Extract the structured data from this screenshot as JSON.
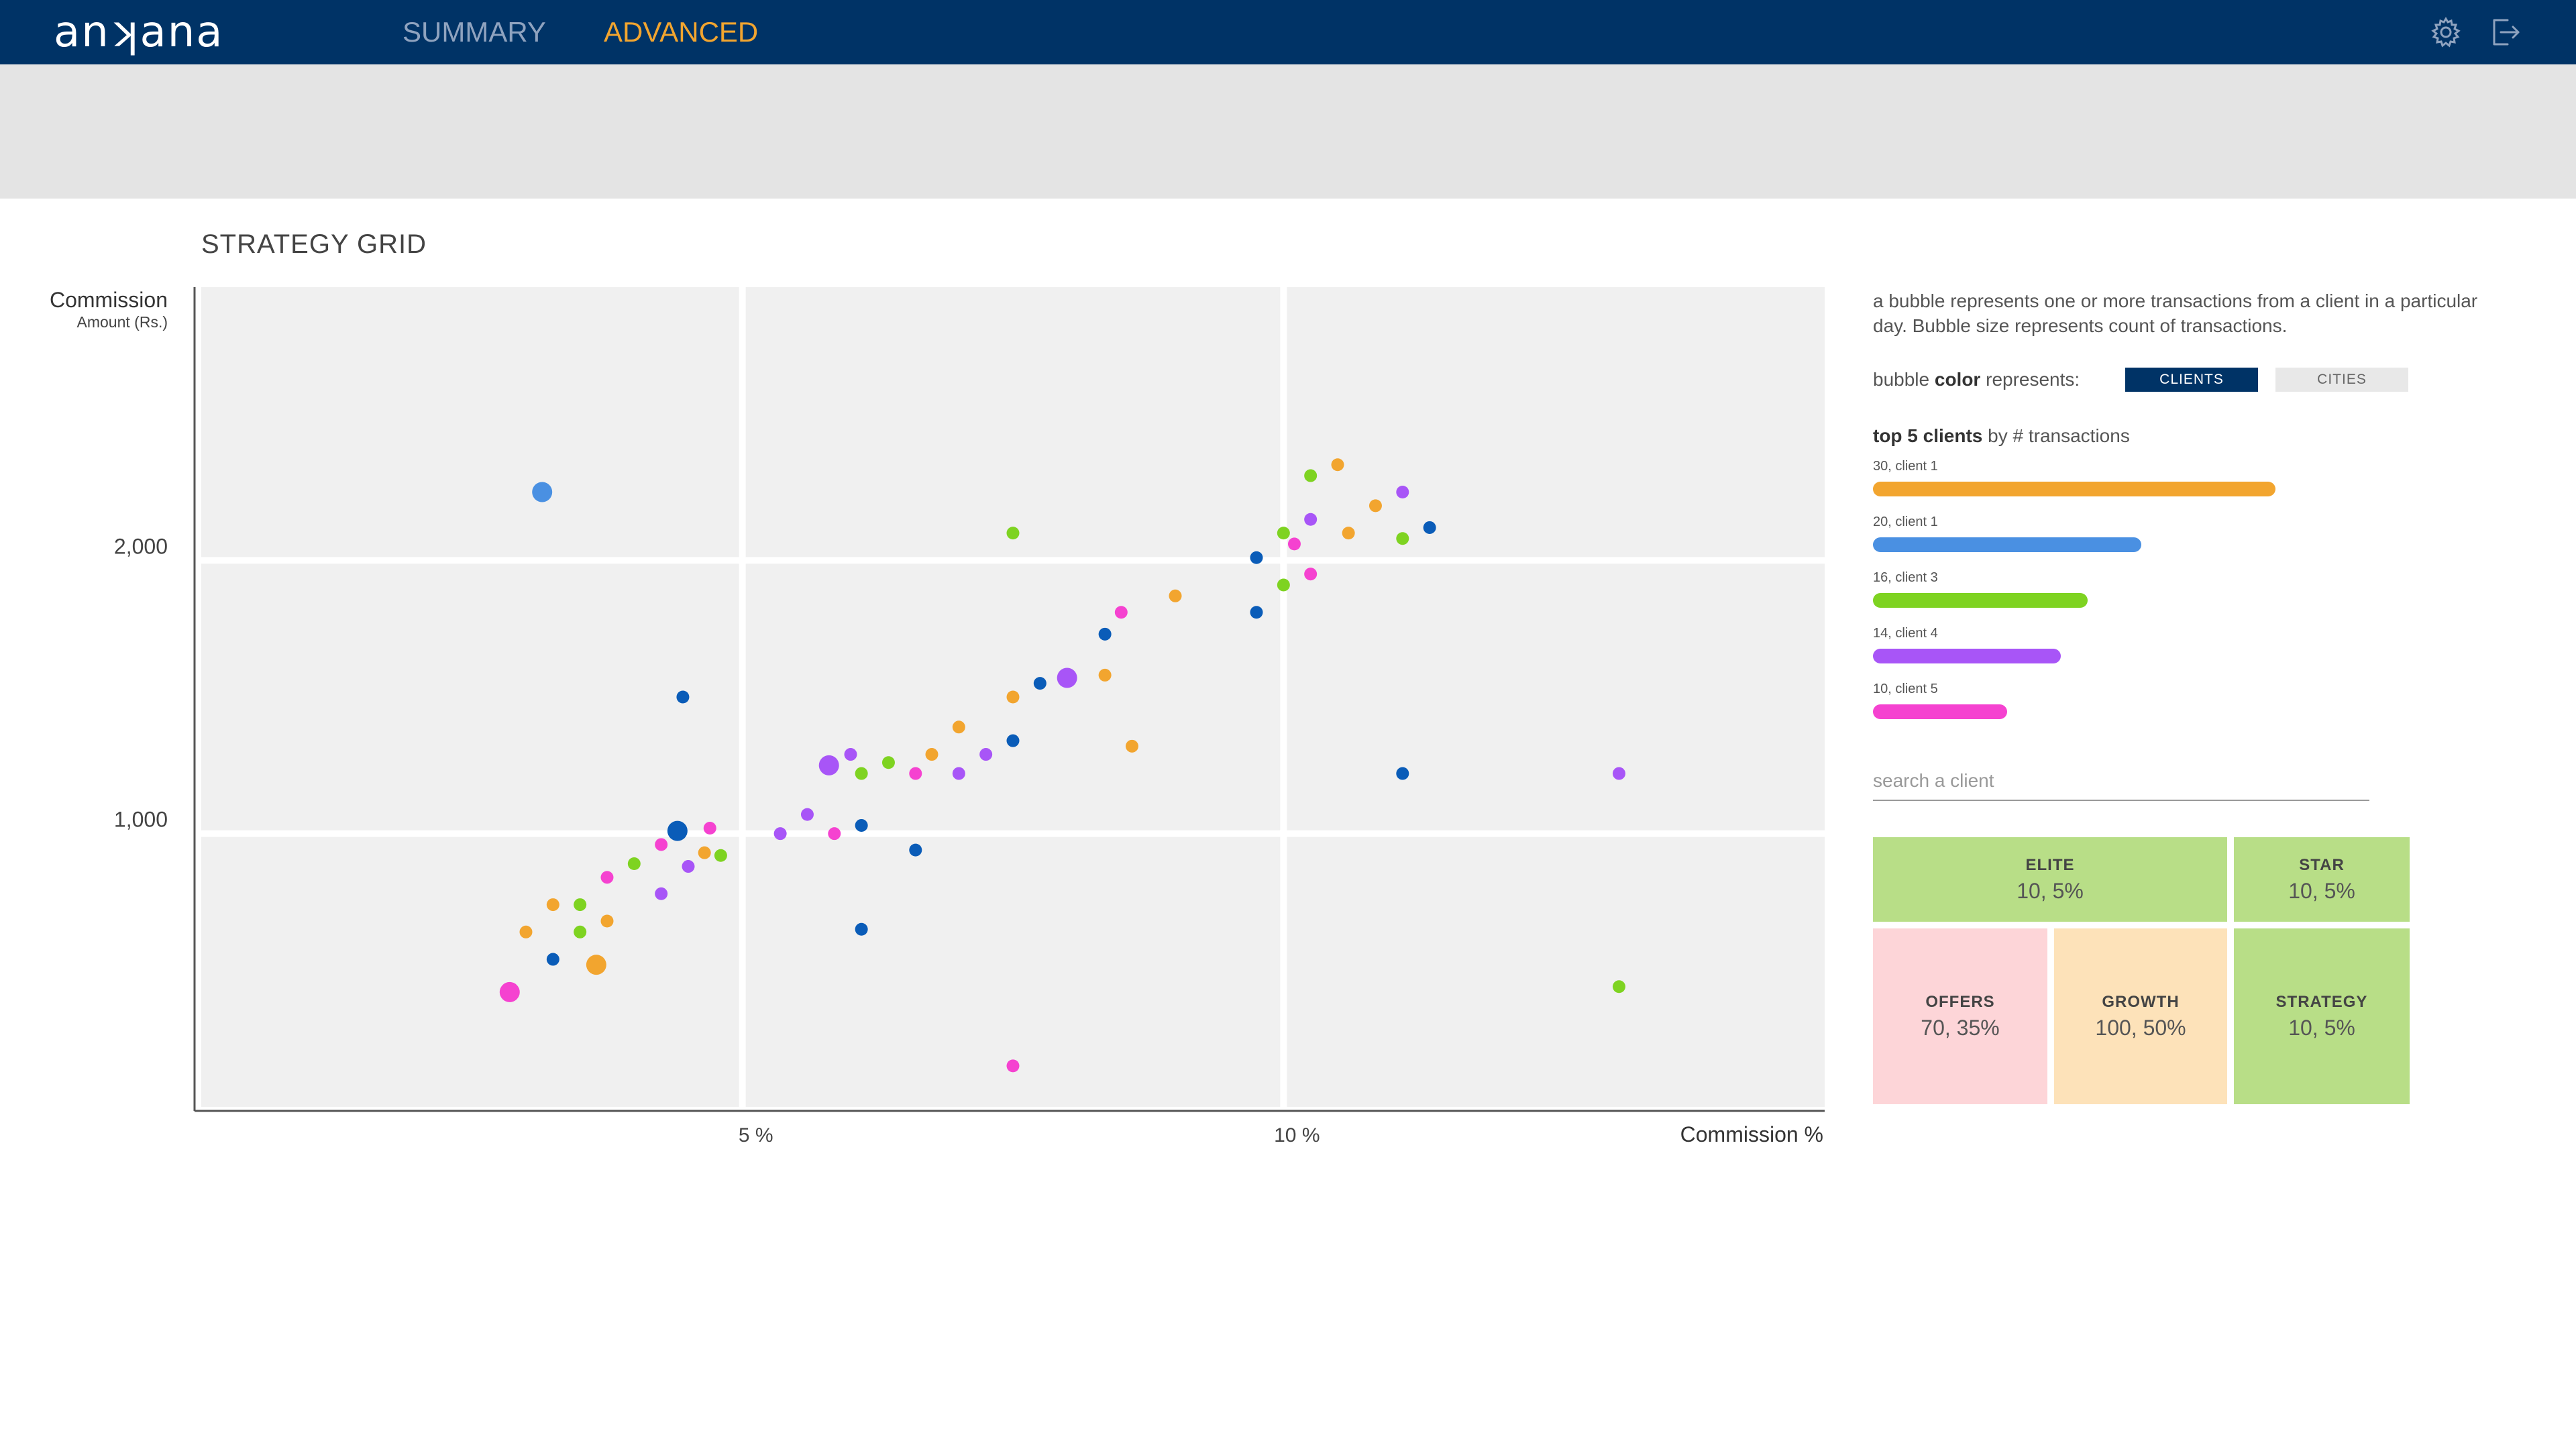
{
  "app": {
    "logo": "anʞana"
  },
  "nav": {
    "tabs": [
      {
        "label": "SUMMARY"
      },
      {
        "label": "ADVANCED"
      }
    ]
  },
  "icons": {
    "settings": "gear-icon",
    "logout": "logout-icon"
  },
  "colors": {
    "topbar": "#003366",
    "active_tab": "#f2a52f",
    "inactive_tab": "#8fa3bf",
    "client1": "#f2a52f",
    "client2": "#4a90e2",
    "client3": "#7ed321",
    "client4": "#a855f7",
    "client5": "#f542d0",
    "client6": "#0a5cb8"
  },
  "section": {
    "title": "STRATEGY GRID"
  },
  "chart_data": {
    "type": "scatter",
    "ylabel": "Commission",
    "ylabel_sub": "Amount (Rs.)",
    "xlabel": "Commission %",
    "x_ticks": [
      {
        "value": 5,
        "label": "5 %"
      },
      {
        "value": 10,
        "label": "10 %"
      }
    ],
    "y_ticks": [
      {
        "value": 1000,
        "label": "1,000"
      },
      {
        "value": 2000,
        "label": "2,000"
      }
    ],
    "xlim": [
      0,
      15
    ],
    "ylim": [
      0,
      3000
    ],
    "quadrant_x": [
      5,
      10
    ],
    "quadrant_y": [
      1000,
      2000
    ],
    "grid": true,
    "size_meaning": "count of transactions",
    "points": [
      {
        "x": 3.15,
        "y": 2250,
        "c": "#4a90e2",
        "s": 2
      },
      {
        "x": 4.45,
        "y": 1500,
        "c": "#0a5cb8",
        "s": 1
      },
      {
        "x": 4.4,
        "y": 1010,
        "c": "#0a5cb8",
        "s": 2
      },
      {
        "x": 4.7,
        "y": 1020,
        "c": "#f542d0",
        "s": 1
      },
      {
        "x": 2.85,
        "y": 420,
        "c": "#f542d0",
        "s": 2
      },
      {
        "x": 3.65,
        "y": 520,
        "c": "#f2a52f",
        "s": 2
      },
      {
        "x": 3.25,
        "y": 540,
        "c": "#0a5cb8",
        "s": 1
      },
      {
        "x": 3.0,
        "y": 640,
        "c": "#f2a52f",
        "s": 1
      },
      {
        "x": 3.25,
        "y": 740,
        "c": "#f2a52f",
        "s": 1
      },
      {
        "x": 3.5,
        "y": 640,
        "c": "#7ed321",
        "s": 1
      },
      {
        "x": 3.5,
        "y": 740,
        "c": "#7ed321",
        "s": 1
      },
      {
        "x": 3.75,
        "y": 680,
        "c": "#f2a52f",
        "s": 1
      },
      {
        "x": 3.75,
        "y": 840,
        "c": "#f542d0",
        "s": 1
      },
      {
        "x": 4.0,
        "y": 890,
        "c": "#7ed321",
        "s": 1
      },
      {
        "x": 4.25,
        "y": 780,
        "c": "#a855f7",
        "s": 1
      },
      {
        "x": 4.25,
        "y": 960,
        "c": "#f542d0",
        "s": 1
      },
      {
        "x": 4.5,
        "y": 880,
        "c": "#a855f7",
        "s": 1
      },
      {
        "x": 4.65,
        "y": 930,
        "c": "#f2a52f",
        "s": 1
      },
      {
        "x": 4.8,
        "y": 920,
        "c": "#7ed321",
        "s": 1
      },
      {
        "x": 5.35,
        "y": 1000,
        "c": "#a855f7",
        "s": 1
      },
      {
        "x": 5.6,
        "y": 1070,
        "c": "#a855f7",
        "s": 1
      },
      {
        "x": 5.8,
        "y": 1250,
        "c": "#a855f7",
        "s": 2
      },
      {
        "x": 5.85,
        "y": 1000,
        "c": "#f542d0",
        "s": 1
      },
      {
        "x": 6.0,
        "y": 1290,
        "c": "#a855f7",
        "s": 1
      },
      {
        "x": 6.1,
        "y": 1030,
        "c": "#0a5cb8",
        "s": 1
      },
      {
        "x": 6.1,
        "y": 1220,
        "c": "#7ed321",
        "s": 1
      },
      {
        "x": 6.1,
        "y": 650,
        "c": "#0a5cb8",
        "s": 1
      },
      {
        "x": 6.35,
        "y": 1260,
        "c": "#7ed321",
        "s": 1
      },
      {
        "x": 6.6,
        "y": 940,
        "c": "#0a5cb8",
        "s": 1
      },
      {
        "x": 6.6,
        "y": 1220,
        "c": "#f542d0",
        "s": 1
      },
      {
        "x": 6.75,
        "y": 1290,
        "c": "#f2a52f",
        "s": 1
      },
      {
        "x": 7.0,
        "y": 1220,
        "c": "#a855f7",
        "s": 1
      },
      {
        "x": 7.0,
        "y": 1390,
        "c": "#f2a52f",
        "s": 1
      },
      {
        "x": 7.25,
        "y": 1290,
        "c": "#a855f7",
        "s": 1
      },
      {
        "x": 7.5,
        "y": 1340,
        "c": "#0a5cb8",
        "s": 1
      },
      {
        "x": 7.5,
        "y": 1500,
        "c": "#f2a52f",
        "s": 1
      },
      {
        "x": 7.5,
        "y": 2100,
        "c": "#7ed321",
        "s": 1
      },
      {
        "x": 7.5,
        "y": 150,
        "c": "#f542d0",
        "s": 1
      },
      {
        "x": 7.75,
        "y": 1550,
        "c": "#0a5cb8",
        "s": 1
      },
      {
        "x": 8.0,
        "y": 1570,
        "c": "#a855f7",
        "s": 2
      },
      {
        "x": 8.35,
        "y": 1580,
        "c": "#f2a52f",
        "s": 1
      },
      {
        "x": 8.35,
        "y": 1730,
        "c": "#0a5cb8",
        "s": 1
      },
      {
        "x": 8.5,
        "y": 1810,
        "c": "#f542d0",
        "s": 1
      },
      {
        "x": 8.6,
        "y": 1320,
        "c": "#f2a52f",
        "s": 1
      },
      {
        "x": 9.0,
        "y": 1870,
        "c": "#f2a52f",
        "s": 1
      },
      {
        "x": 9.75,
        "y": 1810,
        "c": "#0a5cb8",
        "s": 1
      },
      {
        "x": 9.75,
        "y": 2010,
        "c": "#0a5cb8",
        "s": 1
      },
      {
        "x": 10.0,
        "y": 1910,
        "c": "#7ed321",
        "s": 1
      },
      {
        "x": 10.0,
        "y": 2100,
        "c": "#7ed321",
        "s": 1
      },
      {
        "x": 10.1,
        "y": 2060,
        "c": "#f542d0",
        "s": 1
      },
      {
        "x": 10.25,
        "y": 1950,
        "c": "#f542d0",
        "s": 1
      },
      {
        "x": 10.25,
        "y": 2150,
        "c": "#a855f7",
        "s": 1
      },
      {
        "x": 10.25,
        "y": 2310,
        "c": "#7ed321",
        "s": 1
      },
      {
        "x": 10.5,
        "y": 2350,
        "c": "#f2a52f",
        "s": 1
      },
      {
        "x": 10.6,
        "y": 2100,
        "c": "#f2a52f",
        "s": 1
      },
      {
        "x": 10.85,
        "y": 2200,
        "c": "#f2a52f",
        "s": 1
      },
      {
        "x": 11.1,
        "y": 2080,
        "c": "#7ed321",
        "s": 1
      },
      {
        "x": 11.1,
        "y": 2250,
        "c": "#a855f7",
        "s": 1
      },
      {
        "x": 11.35,
        "y": 2120,
        "c": "#0a5cb8",
        "s": 1
      },
      {
        "x": 11.1,
        "y": 1220,
        "c": "#0a5cb8",
        "s": 1
      },
      {
        "x": 13.1,
        "y": 1220,
        "c": "#a855f7",
        "s": 1
      },
      {
        "x": 13.1,
        "y": 440,
        "c": "#7ed321",
        "s": 1
      }
    ]
  },
  "panel": {
    "description": "a bubble represents one or more transactions from a client in a particular day. Bubble size represents count of transactions.",
    "color_prefix": "bubble ",
    "color_bold": "color",
    "color_suffix": " represents:",
    "toggle": {
      "clients": "CLIENTS",
      "cities": "CITIES",
      "selected": "clients"
    },
    "top5_bold": "top 5 clients",
    "top5_rest": " by # transactions",
    "top5": [
      {
        "label": "30, client 1",
        "count": 30,
        "color": "#f2a52f"
      },
      {
        "label": "20, client 1",
        "count": 20,
        "color": "#4a90e2"
      },
      {
        "label": "16, client 3",
        "count": 16,
        "color": "#7ed321"
      },
      {
        "label": "14, client 4",
        "count": 14,
        "color": "#a855f7"
      },
      {
        "label": "10, client 5",
        "count": 10,
        "color": "#f542d0"
      }
    ],
    "search_placeholder": "search a client",
    "tiles": {
      "elite": {
        "name": "ELITE",
        "value": "10, 5%"
      },
      "star": {
        "name": "STAR",
        "value": "10, 5%"
      },
      "offers": {
        "name": "OFFERS",
        "value": "70, 35%"
      },
      "growth": {
        "name": "GROWTH",
        "value": "100, 50%"
      },
      "strategy": {
        "name": "STRATEGY",
        "value": "10, 5%"
      }
    }
  }
}
